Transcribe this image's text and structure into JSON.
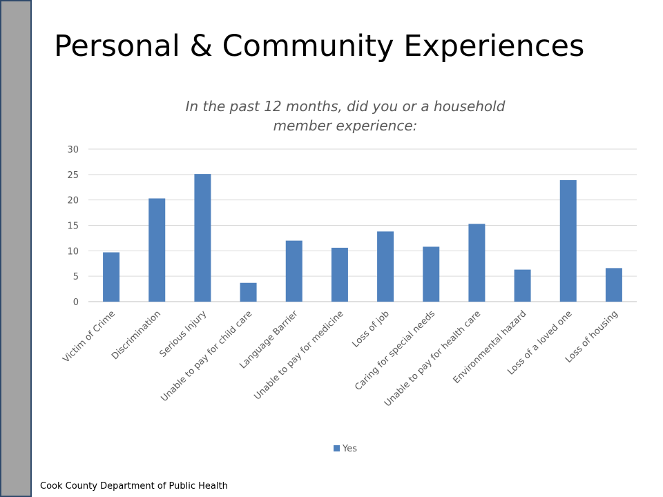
{
  "slide": {
    "title": "Personal & Community Experiences",
    "footer": "Cook County Department of Public Health"
  },
  "colors": {
    "bar": "#4f81bd",
    "side_bar": "#a3a3a3",
    "side_bar_border": "#2f4a6b"
  },
  "chart_data": {
    "type": "bar",
    "title_lines": [
      "In the past 12 months, did you or a household",
      "member experience:"
    ],
    "categories": [
      "Victim of Crime",
      "Discrimination",
      "Serious Injury",
      "Unable to pay for child care",
      "Language Barrier",
      "Unable to pay for medicine",
      "Loss of job",
      "Caring for special needs",
      "Unable to pay for health care",
      "Environmental hazard",
      "Loss of a loved one",
      "Loss of housing"
    ],
    "series": [
      {
        "name": "Yes",
        "values": [
          9.7,
          20.3,
          25.1,
          3.7,
          12.0,
          10.6,
          13.8,
          10.8,
          15.3,
          6.3,
          23.9,
          6.6
        ]
      }
    ],
    "yticks": [
      0,
      5,
      10,
      15,
      20,
      25,
      30
    ],
    "ylim": [
      0,
      30
    ],
    "grid": true,
    "legend_position": "bottom"
  }
}
